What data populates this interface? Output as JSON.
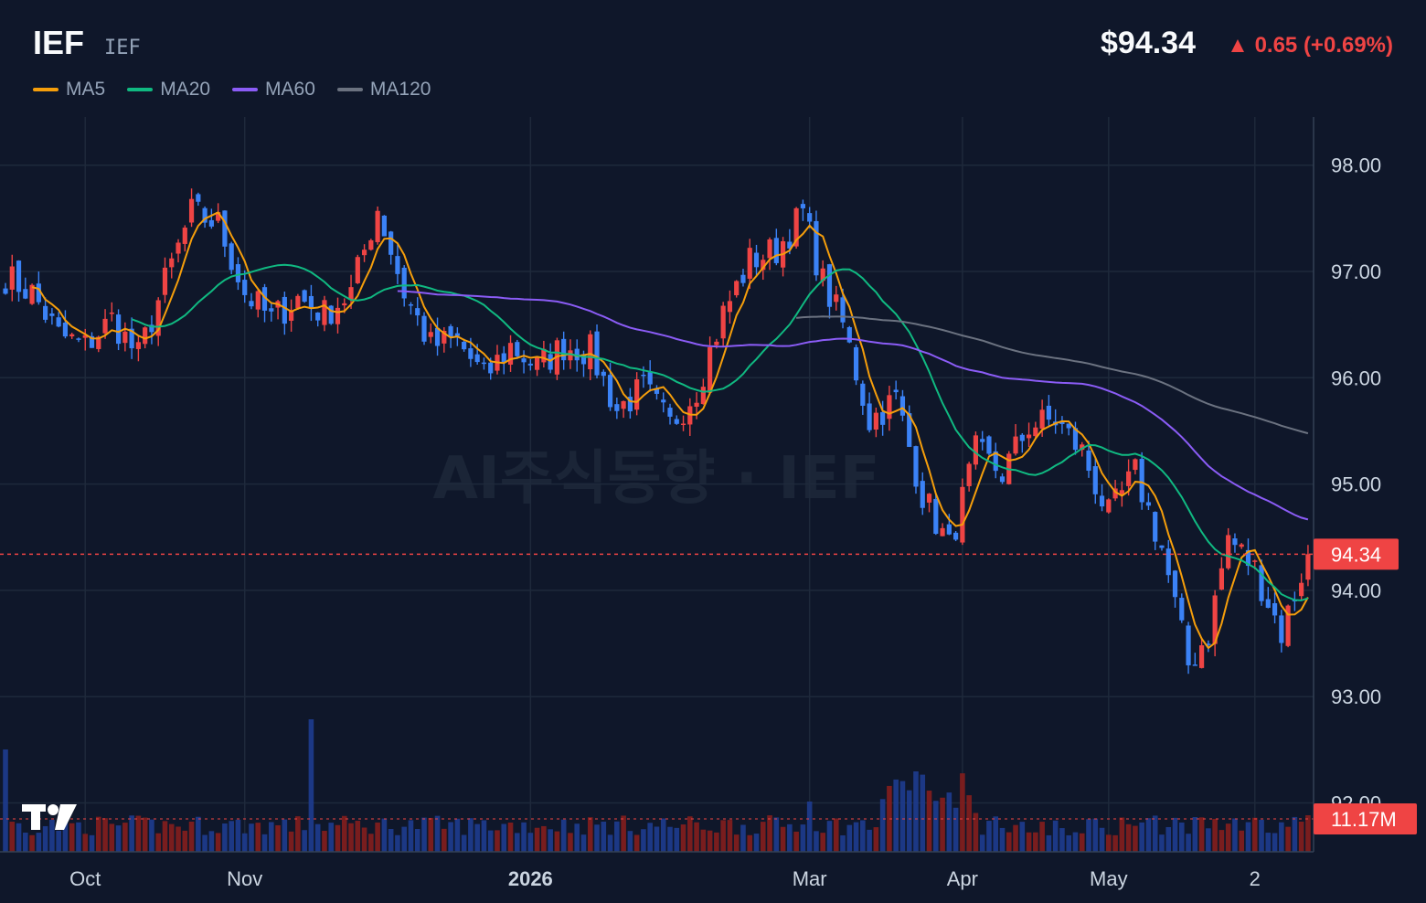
{
  "header": {
    "ticker": "IEF",
    "ticker_sub": "IEF",
    "price": "$94.34",
    "change": "▲ 0.65 (+0.69%)"
  },
  "legend": [
    {
      "label": "MA5",
      "color": "#f59e0b"
    },
    {
      "label": "MA20",
      "color": "#10b981"
    },
    {
      "label": "MA60",
      "color": "#8b5cf6"
    },
    {
      "label": "MA120",
      "color": "#6b7280"
    }
  ],
  "watermark": "AI주식동향 · IEF",
  "logo_text": "TV",
  "last_price_tag": "94.34",
  "last_volume_tag": "11.17M",
  "colors": {
    "up": "#ef4444",
    "down": "#3b82f6",
    "background": "#0f172a",
    "grid": "#1e293b"
  },
  "chart_data": {
    "type": "candlestick",
    "y_ticks": [
      "98.00",
      "97.00",
      "96.00",
      "95.00",
      "94.00",
      "93.00",
      "92.00"
    ],
    "ylim": [
      91.9,
      98.5
    ],
    "x_ticks": [
      {
        "label": "Oct",
        "index": 12,
        "bold": false
      },
      {
        "label": "Nov",
        "index": 36,
        "bold": false
      },
      {
        "label": "2026",
        "index": 79,
        "bold": true
      },
      {
        "label": "Mar",
        "index": 121,
        "bold": false
      },
      {
        "label": "Apr",
        "index": 144,
        "bold": false
      },
      {
        "label": "May",
        "index": 166,
        "bold": false
      },
      {
        "label": "2",
        "index": 188,
        "bold": false
      }
    ],
    "n_bars": 197,
    "last_close": 94.34,
    "last_volume": "11.17M",
    "anchors": [
      [
        0,
        96.95
      ],
      [
        4,
        96.8
      ],
      [
        8,
        96.4
      ],
      [
        12,
        96.3
      ],
      [
        16,
        96.55
      ],
      [
        20,
        96.2
      ],
      [
        24,
        96.9
      ],
      [
        28,
        97.55
      ],
      [
        32,
        97.45
      ],
      [
        36,
        96.8
      ],
      [
        40,
        96.55
      ],
      [
        44,
        96.75
      ],
      [
        48,
        96.6
      ],
      [
        52,
        96.8
      ],
      [
        56,
        97.6
      ],
      [
        60,
        96.8
      ],
      [
        64,
        96.3
      ],
      [
        68,
        96.35
      ],
      [
        72,
        96.0
      ],
      [
        76,
        96.3
      ],
      [
        80,
        96.1
      ],
      [
        84,
        96.3
      ],
      [
        88,
        96.25
      ],
      [
        92,
        95.7
      ],
      [
        96,
        95.9
      ],
      [
        100,
        95.55
      ],
      [
        104,
        95.9
      ],
      [
        108,
        96.6
      ],
      [
        112,
        97.1
      ],
      [
        116,
        97.2
      ],
      [
        120,
        97.55
      ],
      [
        123,
        96.9
      ],
      [
        126,
        96.5
      ],
      [
        130,
        95.6
      ],
      [
        134,
        95.8
      ],
      [
        138,
        94.9
      ],
      [
        142,
        94.4
      ],
      [
        146,
        95.3
      ],
      [
        150,
        95.1
      ],
      [
        154,
        95.55
      ],
      [
        158,
        95.6
      ],
      [
        162,
        95.3
      ],
      [
        166,
        94.7
      ],
      [
        170,
        95.1
      ],
      [
        174,
        94.4
      ],
      [
        178,
        93.3
      ],
      [
        181,
        93.6
      ],
      [
        184,
        94.5
      ],
      [
        188,
        94.2
      ],
      [
        192,
        93.6
      ],
      [
        196,
        94.34
      ]
    ]
  }
}
